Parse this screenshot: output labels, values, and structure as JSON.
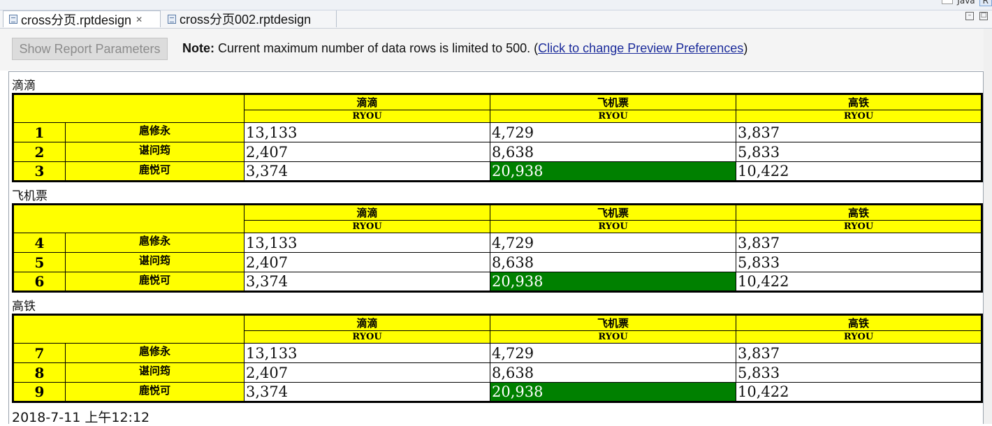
{
  "perspective": {
    "label": "Java"
  },
  "tabs": [
    {
      "label": "cross分页.rptdesign",
      "active": true,
      "close": "✕"
    },
    {
      "label": "cross分页002.rptdesign",
      "active": false
    }
  ],
  "toolbar": {
    "show_params_label": "Show Report Parameters",
    "note_bold": "Note:",
    "note_text": " Current maximum number of data rows is limited to 500. (",
    "note_link": "Click to change Preview Preferences",
    "note_end": ")"
  },
  "columns": [
    {
      "name": "滴滴",
      "measure": "RYOU"
    },
    {
      "name": "飞机票",
      "measure": "RYOU"
    },
    {
      "name": "高铁",
      "measure": "RYOU"
    }
  ],
  "sections": [
    {
      "title": "滴滴",
      "rows": [
        {
          "num": "1",
          "name": "扈修永",
          "values": [
            "13,133",
            "4,729",
            "3,837"
          ]
        },
        {
          "num": "2",
          "name": "谌问筠",
          "values": [
            "2,407",
            "8,638",
            "5,833"
          ]
        },
        {
          "num": "3",
          "name": "鹿悦可",
          "values": [
            "3,374",
            "20,938",
            "10,422"
          ]
        }
      ]
    },
    {
      "title": "飞机票",
      "rows": [
        {
          "num": "4",
          "name": "扈修永",
          "values": [
            "13,133",
            "4,729",
            "3,837"
          ]
        },
        {
          "num": "5",
          "name": "谌问筠",
          "values": [
            "2,407",
            "8,638",
            "5,833"
          ]
        },
        {
          "num": "6",
          "name": "鹿悦可",
          "values": [
            "3,374",
            "20,938",
            "10,422"
          ]
        }
      ]
    },
    {
      "title": "高铁",
      "rows": [
        {
          "num": "7",
          "name": "扈修永",
          "values": [
            "13,133",
            "4,729",
            "3,837"
          ]
        },
        {
          "num": "8",
          "name": "谌问筠",
          "values": [
            "2,407",
            "8,638",
            "5,833"
          ]
        },
        {
          "num": "9",
          "name": "鹿悦可",
          "values": [
            "3,374",
            "20,938",
            "10,422"
          ]
        }
      ]
    }
  ],
  "highlight": {
    "row_index": 2,
    "col_index": 1,
    "color": "#008000"
  },
  "colors": {
    "header_bg": "#ffff00",
    "highlight_bg": "#008000",
    "link": "#1a2a9a"
  },
  "footer": {
    "timestamp": "2018-7-11 上午12:12"
  }
}
